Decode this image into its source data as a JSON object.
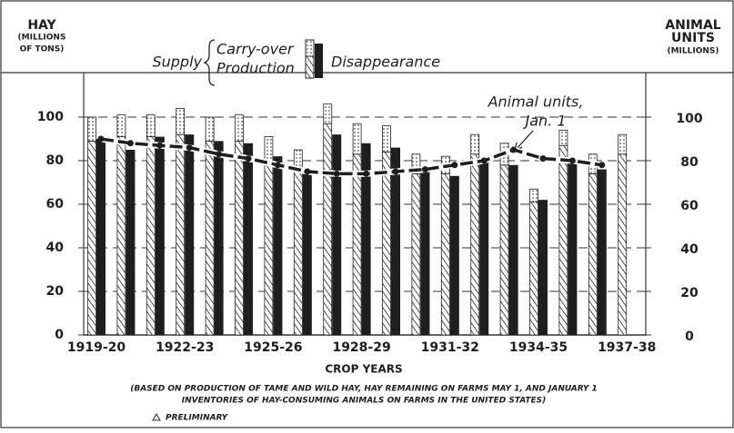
{
  "chart_data": {
    "type": "bar",
    "y_label_lines": [
      "HAY",
      "(MILLIONS",
      "OF TONS)"
    ],
    "y2_label_lines": [
      "ANIMAL",
      "UNITS",
      "(MILLIONS)"
    ],
    "x_label": "CROP YEARS",
    "legend_group": "Supply",
    "annotation_lines": [
      "Animal units,",
      "Jan. 1"
    ],
    "notes": [
      "(BASED ON PRODUCTION OF TAME AND WILD HAY, HAY REMAINING ON FARMS MAY 1, AND JANUARY 1",
      "INVENTORIES OF HAY-CONSUMING ANIMALS ON FARMS IN THE UNITED STATES)"
    ],
    "preliminary_note": "PRELIMINARY",
    "categories": [
      "1919-20",
      null,
      null,
      "1922-23",
      null,
      null,
      "1925-26",
      null,
      null,
      "1928-29",
      null,
      null,
      "1931-32",
      null,
      null,
      "1934-35",
      null,
      null,
      "1937-38"
    ],
    "series": [
      {
        "name": "Production",
        "color": "#ffffff",
        "values": [
          89,
          91,
          91,
          92,
          89,
          89,
          79,
          76,
          97,
          83,
          84,
          74,
          74,
          83,
          78,
          61,
          87,
          74,
          83
        ]
      },
      {
        "name": "Carry-over",
        "color": "#ffffff",
        "values": [
          11,
          10,
          10,
          12,
          11,
          12,
          12,
          9,
          9,
          14,
          12,
          9,
          8,
          9,
          10,
          6,
          7,
          9,
          9
        ]
      },
      {
        "name": "Disappearance",
        "color": "#1e1e1e",
        "values": [
          90,
          85,
          91,
          92,
          89,
          88,
          82,
          76,
          92,
          88,
          86,
          77,
          73,
          81,
          78,
          62,
          80,
          76,
          null
        ]
      },
      {
        "name": "Animal units",
        "color": "#1e1e1e",
        "axis": "y2",
        "values": [
          90,
          88,
          87,
          86,
          83,
          81,
          78,
          75,
          74,
          74,
          75,
          76,
          78,
          80,
          85,
          81,
          80,
          78,
          null
        ]
      }
    ],
    "ylim": [
      0,
      100
    ],
    "yticks": [
      0,
      20,
      40,
      60,
      80,
      100
    ],
    "y2lim": [
      0,
      100
    ],
    "y2ticks": [
      0,
      20,
      40,
      60,
      80,
      100
    ],
    "grid": true
  }
}
